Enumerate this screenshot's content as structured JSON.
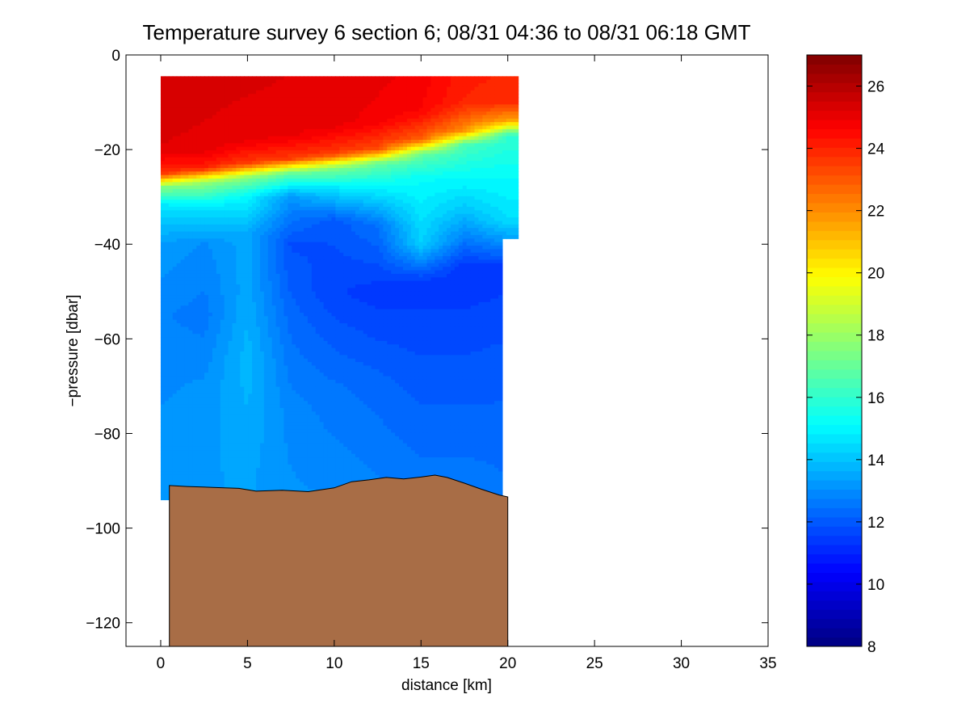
{
  "chart_data": {
    "type": "heatmap",
    "title": "Temperature survey 6 section 6; 08/31 04:36 to 08/31 06:18 GMT",
    "xlabel": "distance [km]",
    "ylabel": "−pressure [dbar]",
    "xlim": [
      -2,
      35
    ],
    "ylim": [
      -125,
      0
    ],
    "xticks": [
      0,
      5,
      10,
      15,
      20,
      25,
      30,
      35
    ],
    "xtick_labels": [
      "0",
      "5",
      "10",
      "15",
      "20",
      "25",
      "30",
      "35"
    ],
    "yticks": [
      0,
      -20,
      -40,
      -60,
      -80,
      -100,
      -120
    ],
    "ytick_labels": [
      "0",
      "−20",
      "−40",
      "−60",
      "−80",
      "−100",
      "−120"
    ],
    "colorbar": {
      "colormap": "jet",
      "clim": [
        8,
        27
      ],
      "ticks": [
        8,
        10,
        12,
        14,
        16,
        18,
        20,
        22,
        24,
        26
      ],
      "tick_labels": [
        "8",
        "10",
        "12",
        "14",
        "16",
        "18",
        "20",
        "22",
        "24",
        "26"
      ]
    },
    "profiles": [
      {
        "x": 0.0,
        "temps": [
          [
            -5,
            25.5
          ],
          [
            -20,
            25.2
          ],
          [
            -25,
            23.8
          ],
          [
            -28,
            17.5
          ],
          [
            -32,
            14.6
          ],
          [
            -40,
            13.3
          ],
          [
            -55,
            12.8
          ],
          [
            -70,
            13.0
          ],
          [
            -90,
            13.2
          ]
        ]
      },
      {
        "x": 2.5,
        "temps": [
          [
            -5,
            25.4
          ],
          [
            -20,
            25.1
          ],
          [
            -24,
            24.0
          ],
          [
            -27,
            17.8
          ],
          [
            -32,
            14.8
          ],
          [
            -40,
            13.0
          ],
          [
            -55,
            12.6
          ],
          [
            -70,
            13.1
          ],
          [
            -90,
            13.3
          ]
        ]
      },
      {
        "x": 5.0,
        "temps": [
          [
            -5,
            25.3
          ],
          [
            -18,
            25.0
          ],
          [
            -23,
            23.5
          ],
          [
            -26,
            17.5
          ],
          [
            -30,
            15.0
          ],
          [
            -38,
            13.5
          ],
          [
            -50,
            13.5
          ],
          [
            -65,
            13.8
          ],
          [
            -90,
            13.4
          ]
        ]
      },
      {
        "x": 7.5,
        "temps": [
          [
            -5,
            25.2
          ],
          [
            -17,
            25.0
          ],
          [
            -22,
            23.5
          ],
          [
            -25,
            17.0
          ],
          [
            -30,
            13.2
          ],
          [
            -40,
            11.8
          ],
          [
            -55,
            12.3
          ],
          [
            -75,
            12.9
          ],
          [
            -92,
            13.1
          ]
        ]
      },
      {
        "x": 10.0,
        "temps": [
          [
            -5,
            25.2
          ],
          [
            -15,
            25.0
          ],
          [
            -21,
            23.5
          ],
          [
            -24,
            17.5
          ],
          [
            -28,
            14.8
          ],
          [
            -35,
            12.0
          ],
          [
            -50,
            11.6
          ],
          [
            -70,
            12.5
          ],
          [
            -92,
            13.0
          ]
        ]
      },
      {
        "x": 12.5,
        "temps": [
          [
            -5,
            25.0
          ],
          [
            -14,
            24.8
          ],
          [
            -20,
            23.2
          ],
          [
            -23,
            17.0
          ],
          [
            -28,
            15.0
          ],
          [
            -36,
            12.5
          ],
          [
            -50,
            11.4
          ],
          [
            -70,
            12.3
          ],
          [
            -91,
            12.8
          ]
        ]
      },
      {
        "x": 15.0,
        "temps": [
          [
            -5,
            24.8
          ],
          [
            -12,
            24.6
          ],
          [
            -18,
            22.8
          ],
          [
            -21,
            17.0
          ],
          [
            -26,
            15.2
          ],
          [
            -40,
            14.2
          ],
          [
            -48,
            11.4
          ],
          [
            -65,
            11.9
          ],
          [
            -90,
            12.6
          ]
        ]
      },
      {
        "x": 17.5,
        "temps": [
          [
            -3,
            24.2
          ],
          [
            -10,
            24.0
          ],
          [
            -16,
            22.0
          ],
          [
            -19,
            16.5
          ],
          [
            -25,
            15.3
          ],
          [
            -33,
            14.0
          ],
          [
            -45,
            11.3
          ],
          [
            -65,
            11.9
          ],
          [
            -90,
            12.6
          ]
        ]
      },
      {
        "x": 20.0,
        "temps": [
          [
            -3,
            24.0
          ],
          [
            -10,
            23.8
          ],
          [
            -14,
            21.5
          ],
          [
            -17,
            16.0
          ],
          [
            -25,
            15.2
          ],
          [
            -35,
            14.5
          ],
          [
            -45,
            11.4
          ],
          [
            -65,
            12.0
          ],
          [
            -91,
            12.5
          ]
        ]
      }
    ],
    "bottom_depth": {
      "x": [
        0.5,
        1.5,
        3.0,
        4.5,
        5.5,
        7.0,
        8.5,
        10.0,
        11.0,
        12.0,
        13.0,
        14.0,
        15.0,
        15.8,
        16.5,
        17.5,
        18.5,
        19.5,
        20.0
      ],
      "y": [
        -91,
        -91.2,
        -91.4,
        -91.6,
        -92.2,
        -92.0,
        -92.3,
        -91.5,
        -90.2,
        -89.8,
        -89.3,
        -89.6,
        -89.2,
        -88.8,
        -89.3,
        -90.5,
        -91.8,
        -93.0,
        -93.4
      ]
    },
    "bottom_color": "#a86d46"
  }
}
